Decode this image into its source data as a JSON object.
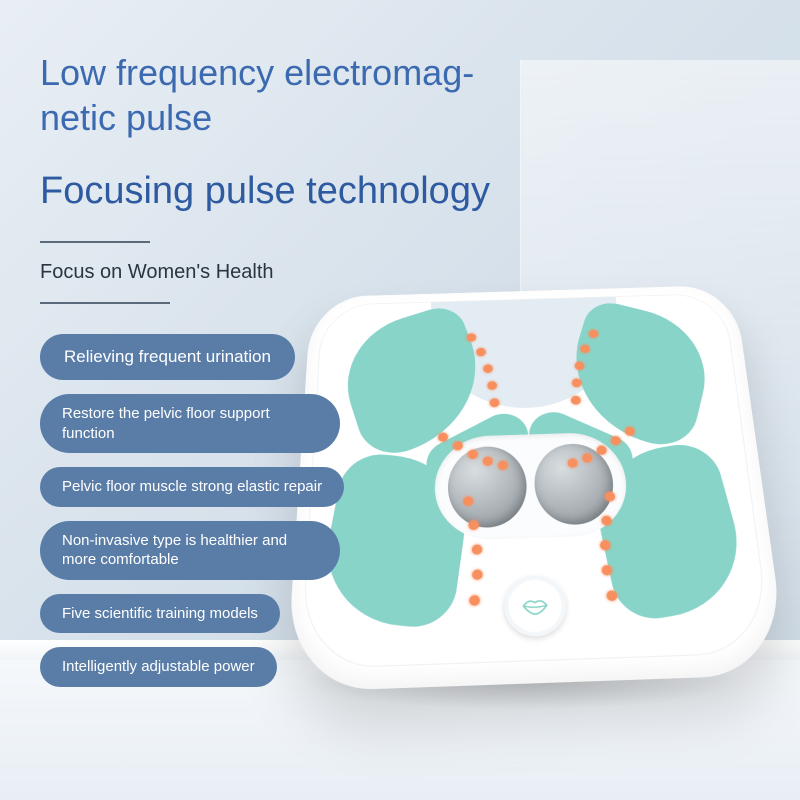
{
  "colors": {
    "title_main": "#3b6ab0",
    "title_sub": "#2d5aa0",
    "pill_bg": "#5a7da8",
    "pill_text": "#ffffff",
    "device_pad": "#88d4c8",
    "device_white": "#ffffff",
    "dot_color": "#f78f5f",
    "background_top": "#e8eef4",
    "background_bottom": "#c8d6e2",
    "tagline_color": "#2a3540",
    "divider_color": "#5a6a7a"
  },
  "typography": {
    "title_main_size": 36,
    "title_sub_size": 38,
    "tagline_size": 20,
    "pill_size": 15,
    "pill_lg_size": 17
  },
  "heading": {
    "line1": "Low frequency electromag-",
    "line2": "netic pulse"
  },
  "subheading": "Focusing pulse technology",
  "tagline": "Focus on Women's Health",
  "features": [
    {
      "text": "Relieving frequent urination",
      "size": "lg"
    },
    {
      "text": "Restore the pelvic floor support function",
      "size": "multi"
    },
    {
      "text": "Pelvic floor muscle strong elastic repair",
      "size": ""
    },
    {
      "text": "Non-invasive type is healthier and more comfortable",
      "size": "multi"
    },
    {
      "text": "Five scientific training models",
      "size": ""
    },
    {
      "text": "Intelligently adjustable power",
      "size": ""
    }
  ],
  "device": {
    "pad_color": "#88d4c8",
    "dot_color": "#f78f5f",
    "button_icon": "lips-icon",
    "button_icon_color": "#88d4c8"
  }
}
